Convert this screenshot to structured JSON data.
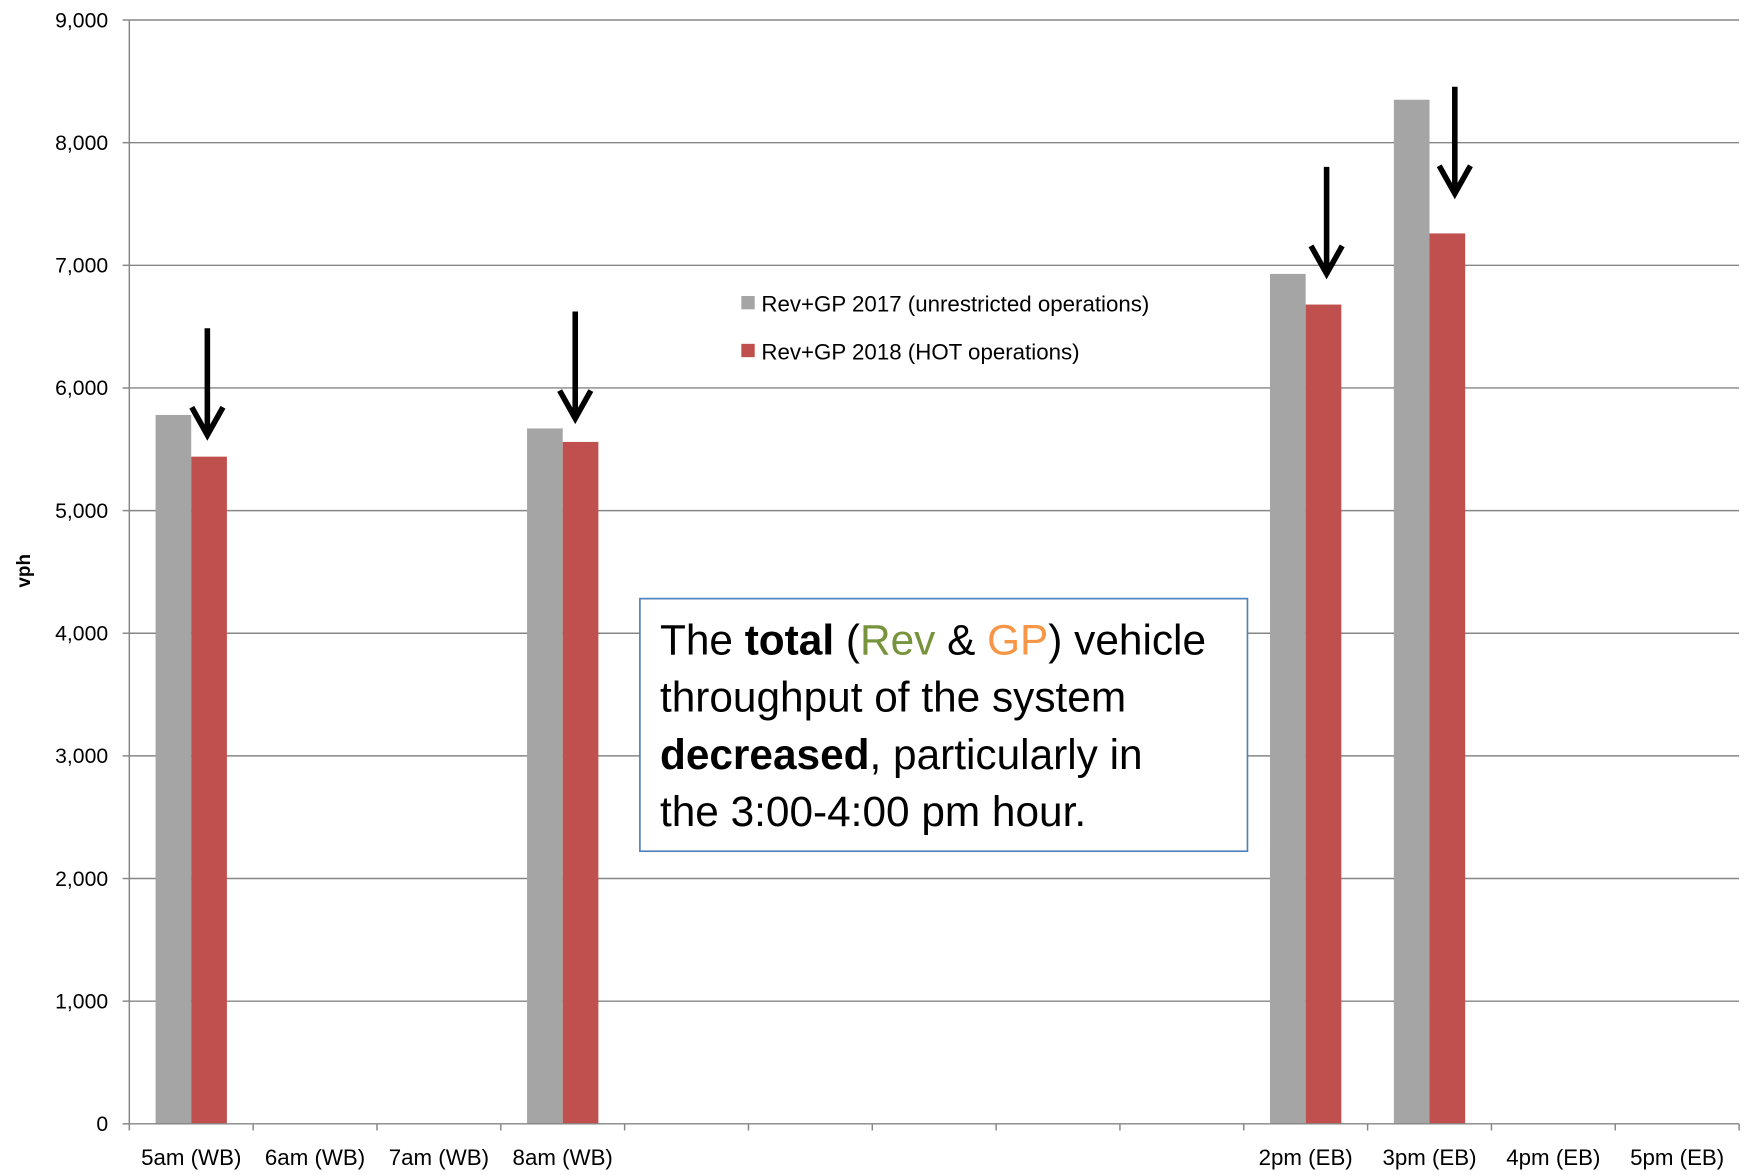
{
  "chart_data": {
    "type": "bar",
    "categories": [
      "5am (WB)",
      "6am (WB)",
      "7am (WB)",
      "8am (WB)",
      "",
      "",
      "",
      "",
      "",
      "2pm (EB)",
      "3pm (EB)",
      "4pm (EB)",
      "5pm (EB)"
    ],
    "series": [
      {
        "name": "Rev+GP 2017 (unrestricted operations)",
        "color": "#A5A5A5",
        "values": [
          5780,
          null,
          null,
          5670,
          null,
          null,
          null,
          null,
          null,
          6930,
          8350,
          null,
          null
        ]
      },
      {
        "name": "Rev+GP 2018 (HOT operations)",
        "color": "#C0504D",
        "values": [
          5440,
          null,
          null,
          5560,
          null,
          null,
          null,
          null,
          null,
          6680,
          7260,
          null,
          null
        ]
      }
    ],
    "ylabel": "vph",
    "ylim": [
      0,
      9000
    ],
    "yticks": [
      "0",
      "1,000",
      "2,000",
      "3,000",
      "4,000",
      "5,000",
      "6,000",
      "7,000",
      "8,000",
      "9,000"
    ],
    "grid": true,
    "legend_position": "top-center"
  },
  "annotation": {
    "border_color": "#4F81BD",
    "lines": [
      [
        {
          "text": "The "
        },
        {
          "text": "total",
          "bold": true
        },
        {
          "text": " ("
        },
        {
          "text": "Rev",
          "color": "#77933C"
        },
        {
          "text": " & "
        },
        {
          "text": "GP",
          "color": "#F79646"
        },
        {
          "text": ") vehicle"
        }
      ],
      [
        {
          "text": "throughput of the system"
        }
      ],
      [
        {
          "text": "decreased",
          "bold": true
        },
        {
          "text": ", particularly in"
        }
      ],
      [
        {
          "text": "the 3:00-4:00 pm hour."
        }
      ]
    ]
  },
  "colors": {
    "gridline": "#868686",
    "arrow": "#000000"
  }
}
